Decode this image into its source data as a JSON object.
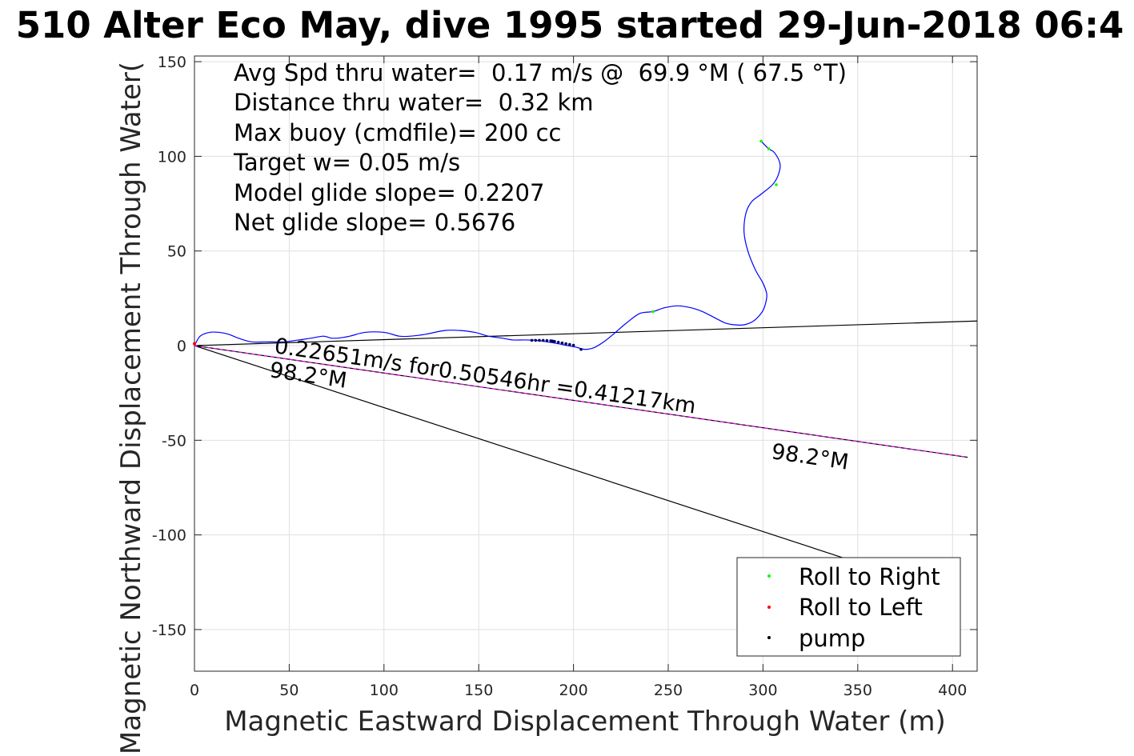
{
  "chart_data": {
    "type": "line",
    "title": "510 Alter Eco May, dive 1995 started 29-Jun-2018 06:4",
    "xlabel": "Magnetic Eastward Displacement Through Water (m)",
    "ylabel": "Magnetic Northward Displacement Through Water(",
    "xlim": [
      0,
      413
    ],
    "ylim": [
      -172,
      153
    ],
    "xticks": [
      0,
      50,
      100,
      150,
      200,
      250,
      300,
      350,
      400
    ],
    "yticks": [
      150,
      100,
      50,
      0,
      -50,
      -100,
      -150
    ],
    "grid": true,
    "info_lines": [
      "Avg Spd thru water=  0.17 m/s @  69.9 °M ( 67.5 °T)",
      "Distance thru water=  0.32 km",
      "Max buoy (cmdfile)= 200 cc",
      "Target w= 0.05 m/s",
      "Model glide slope= 0.2207",
      "Net glide slope= 0.5676"
    ],
    "annotations": {
      "current_label": "0.22651m/s for0.50546hr =0.41217km",
      "heading_label_left": "98.2°M",
      "heading_label_right": "98.2°M"
    },
    "legend": {
      "position": "bottom-right",
      "entries": [
        {
          "label": "Roll to Right",
          "color": "#00ff00"
        },
        {
          "label": "Roll to Left",
          "color": "#ff0000"
        },
        {
          "label": "pump",
          "color": "#000000"
        }
      ]
    },
    "series": [
      {
        "color": "#0000ff",
        "x": [
          0,
          3,
          8,
          13,
          18,
          23,
          30,
          38,
          47,
          55,
          62,
          68,
          72,
          76,
          82,
          90,
          100,
          108,
          114,
          122,
          132,
          140,
          148,
          155,
          162,
          168,
          174,
          180,
          186,
          192,
          197,
          202,
          206,
          211,
          216,
          221,
          228,
          235,
          242,
          248,
          255,
          262,
          268,
          274,
          280,
          285,
          290,
          295,
          299,
          301,
          302,
          300,
          296,
          292,
          290,
          291,
          294,
          299,
          305,
          308,
          309,
          306,
          303,
          299
        ],
        "y": [
          0,
          5,
          7,
          7,
          6,
          4,
          2,
          2,
          2,
          3,
          4,
          5,
          4,
          4,
          5,
          7,
          7,
          5,
          5,
          6,
          8,
          8,
          7,
          5,
          4,
          3,
          3,
          2.8,
          2,
          1,
          0,
          -1,
          -2,
          -1,
          2,
          6,
          12,
          17,
          18,
          20,
          21,
          20,
          18,
          15,
          12,
          11,
          11,
          13,
          17,
          21,
          27,
          33,
          40,
          50,
          60,
          70,
          76,
          80,
          85,
          90,
          96,
          102,
          104,
          108
        ]
      }
    ],
    "markers": {
      "roll_right": {
        "color": "#00ff00",
        "x": [
          242,
          299,
          303,
          307
        ],
        "y": [
          18,
          108,
          104,
          85
        ]
      },
      "roll_left": {
        "color": "#ff0000",
        "x": [
          0
        ],
        "y": [
          1
        ]
      },
      "pump": {
        "color": "#000066",
        "x": [
          178,
          180,
          182,
          184,
          186,
          188,
          189,
          190,
          192,
          194,
          196,
          198,
          200,
          204
        ],
        "y": [
          2.8,
          2.8,
          2.8,
          2.8,
          2.7,
          2.6,
          2.4,
          2.2,
          1.8,
          1.4,
          1.0,
          0.6,
          0.2,
          -2
        ]
      }
    },
    "reference_lines": [
      {
        "color": "#000000",
        "x": [
          0,
          413
        ],
        "y": [
          0,
          13
        ]
      },
      {
        "color": "#000000",
        "x": [
          0,
          342
        ],
        "y": [
          0,
          -112
        ]
      },
      {
        "color": "#000000",
        "dashed_overlay": "#ff00ff",
        "x": [
          0,
          408
        ],
        "y": [
          0,
          -59
        ]
      }
    ]
  }
}
